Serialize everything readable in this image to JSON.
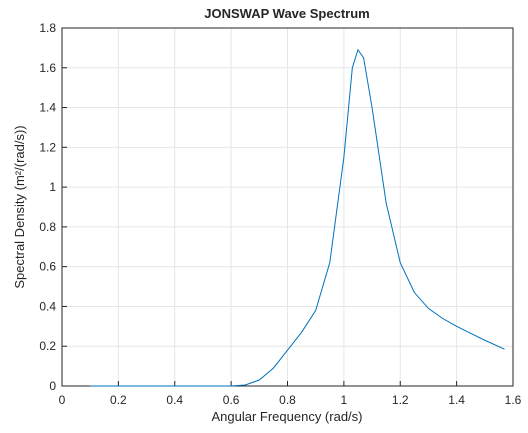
{
  "chart_data": {
    "type": "line",
    "title": "JONSWAP Wave Spectrum",
    "x_label": "Angular Frequency (rad/s)",
    "y_label": "Spectral Density (m²/(rad/s))",
    "x": [
      0.1,
      0.2,
      0.3,
      0.4,
      0.5,
      0.6,
      0.65,
      0.7,
      0.75,
      0.8,
      0.85,
      0.9,
      0.95,
      1.0,
      1.03,
      1.05,
      1.07,
      1.1,
      1.15,
      1.2,
      1.25,
      1.3,
      1.35,
      1.4,
      1.45,
      1.5,
      1.57
    ],
    "series": [
      {
        "color": "#0072bd",
        "values": [
          0,
          0,
          0,
          0,
          0,
          0,
          0.005,
          0.03,
          0.09,
          0.18,
          0.27,
          0.38,
          0.62,
          1.15,
          1.6,
          1.69,
          1.65,
          1.4,
          0.92,
          0.62,
          0.47,
          0.39,
          0.34,
          0.3,
          0.265,
          0.23,
          0.185
        ]
      }
    ],
    "xlim": [
      0,
      1.6
    ],
    "xticks": [
      0,
      0.2,
      0.4,
      0.6,
      0.8,
      1,
      1.2,
      1.4,
      1.6
    ],
    "ylim": [
      0,
      1.8
    ],
    "yticks": [
      0,
      0.2,
      0.4,
      0.6,
      0.8,
      1,
      1.2,
      1.4,
      1.6,
      1.8
    ],
    "grid": true
  }
}
